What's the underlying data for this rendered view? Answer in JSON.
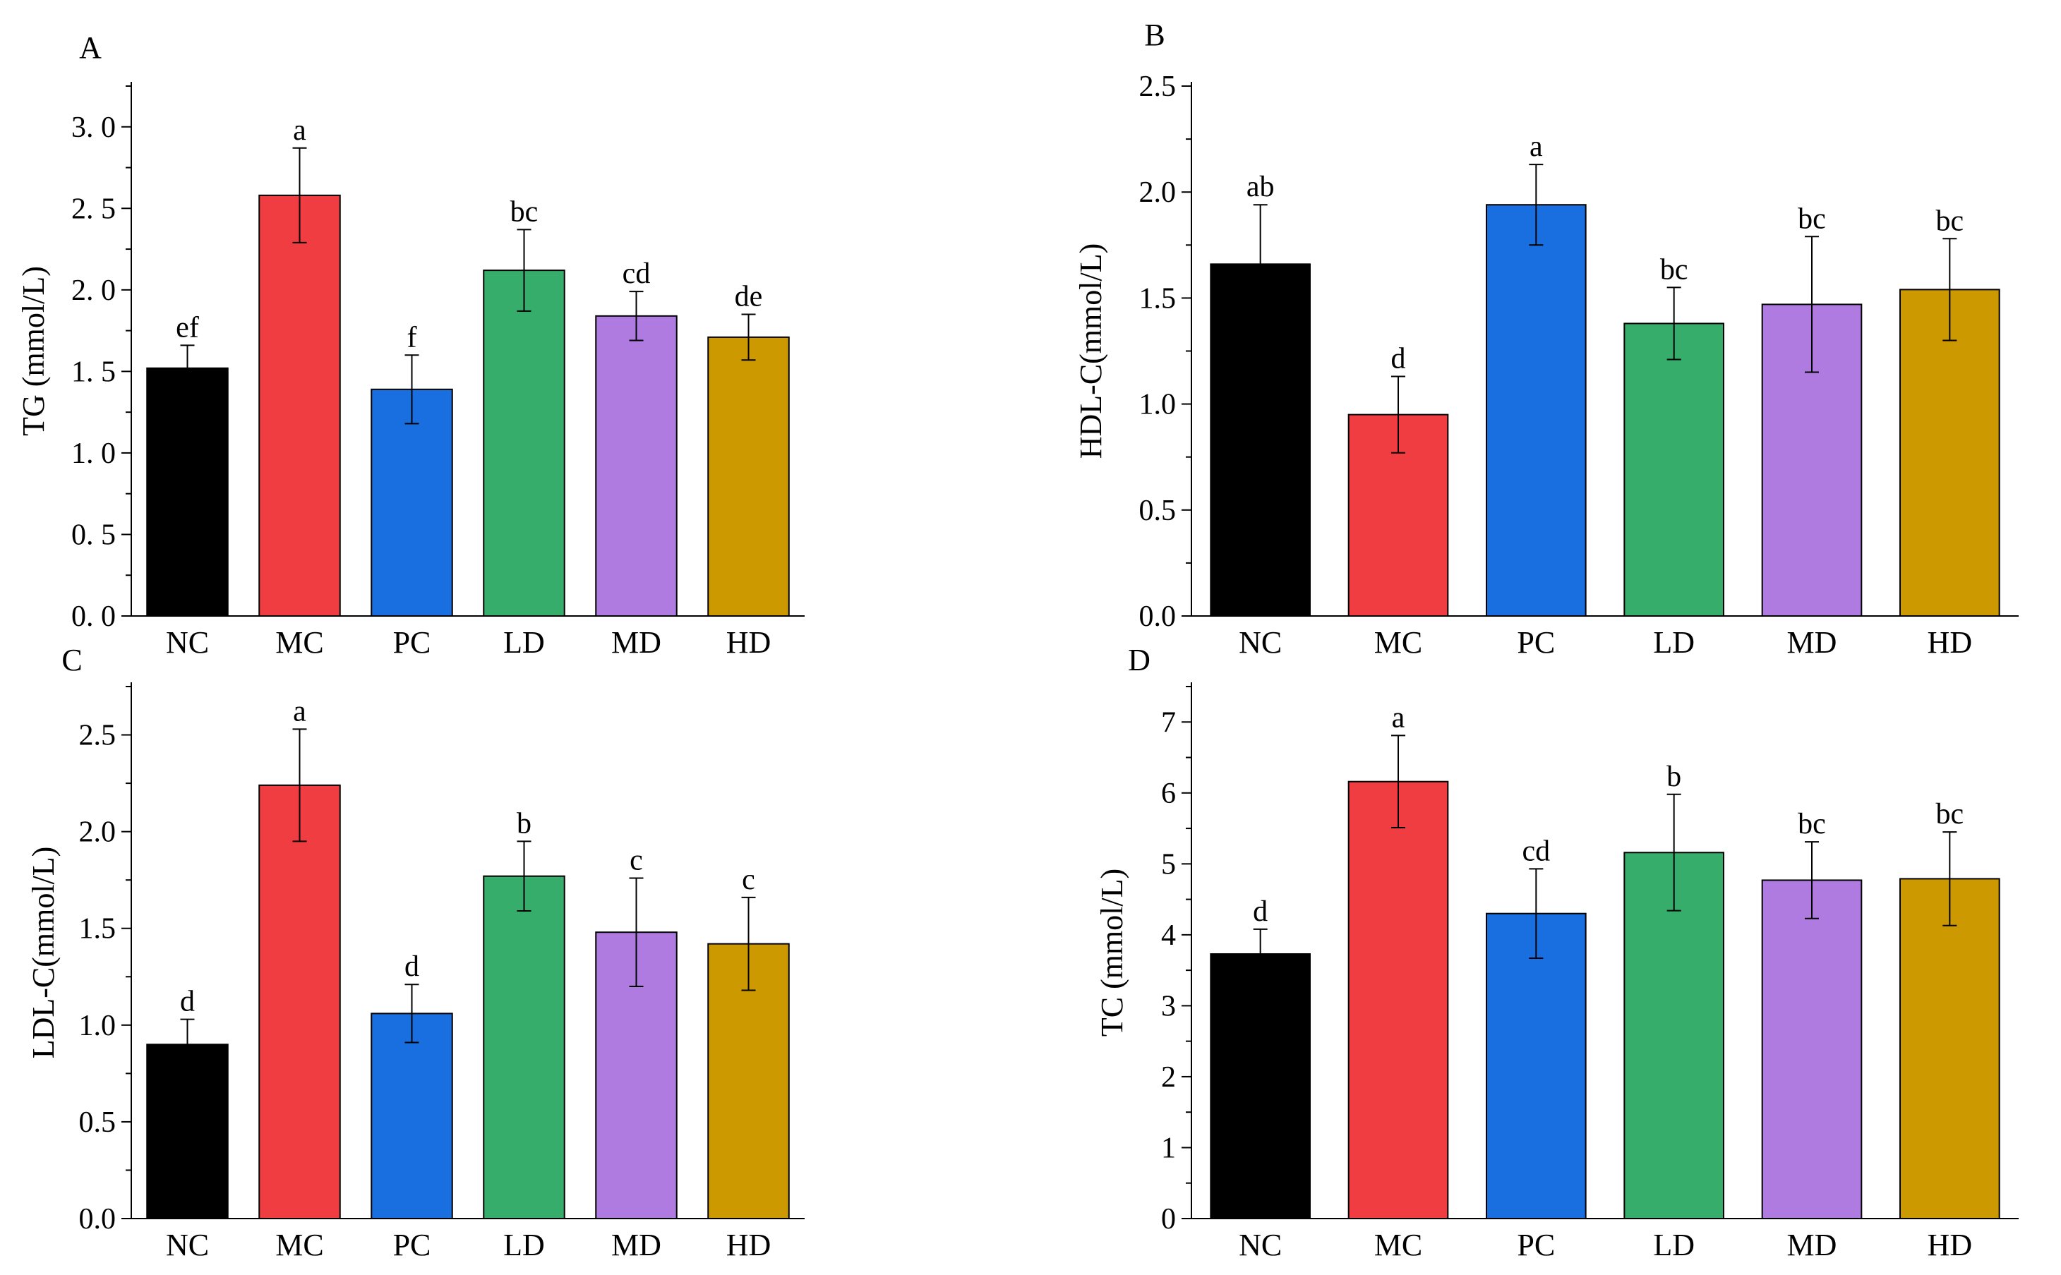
{
  "colors": {
    "NC": "#000000",
    "MC": "#ef3d42",
    "PC": "#1a6fe0",
    "LD": "#36ad6a",
    "MD": "#b07be0",
    "HD": "#cc9a00"
  },
  "chart_data": [
    {
      "panel": "A",
      "type": "bar",
      "ylabel": "TG (mmol/L)",
      "categories": [
        "NC",
        "MC",
        "PC",
        "LD",
        "MD",
        "HD"
      ],
      "values": [
        1.52,
        2.58,
        1.39,
        2.12,
        1.84,
        1.71
      ],
      "errors": [
        0.14,
        0.29,
        0.21,
        0.25,
        0.15,
        0.14
      ],
      "significance": [
        "ef",
        "a",
        "f",
        "bc",
        "cd",
        "de"
      ],
      "ylim": [
        0,
        3.25
      ],
      "yticks": [
        0,
        0.5,
        1.0,
        1.5,
        2.0,
        2.5,
        3.0
      ],
      "ytick_labels": [
        "0. 0",
        "0. 5",
        "1. 0",
        "1. 5",
        "2. 0",
        "2. 5",
        "3. 0"
      ]
    },
    {
      "panel": "B",
      "type": "bar",
      "ylabel": "HDL-C(mmol/L)",
      "categories": [
        "NC",
        "MC",
        "PC",
        "LD",
        "MD",
        "HD"
      ],
      "values": [
        1.66,
        0.95,
        1.94,
        1.38,
        1.47,
        1.54
      ],
      "errors": [
        0.28,
        0.18,
        0.19,
        0.17,
        0.32,
        0.24
      ],
      "significance": [
        "ab",
        "d",
        "a",
        "bc",
        "bc",
        "bc"
      ],
      "ylim": [
        0,
        2.5
      ],
      "yticks": [
        0,
        0.5,
        1.0,
        1.5,
        2.0,
        2.5
      ],
      "ytick_labels": [
        "0.0",
        "0.5",
        "1.0",
        "1.5",
        "2.0",
        "2.5"
      ]
    },
    {
      "panel": "C",
      "type": "bar",
      "ylabel": "LDL-C(mmol/L)",
      "categories": [
        "NC",
        "MC",
        "PC",
        "LD",
        "MD",
        "HD"
      ],
      "values": [
        0.9,
        2.24,
        1.06,
        1.77,
        1.48,
        1.42
      ],
      "errors": [
        0.13,
        0.29,
        0.15,
        0.18,
        0.28,
        0.24
      ],
      "significance": [
        "d",
        "a",
        "d",
        "b",
        "c",
        "c"
      ],
      "ylim": [
        0,
        2.75
      ],
      "yticks": [
        0,
        0.5,
        1.0,
        1.5,
        2.0,
        2.5
      ],
      "ytick_labels": [
        "0.0",
        "0.5",
        "1.0",
        "1.5",
        "2.0",
        "2.5"
      ]
    },
    {
      "panel": "D",
      "type": "bar",
      "ylabel": "TC (mmol/L)",
      "categories": [
        "NC",
        "MC",
        "PC",
        "LD",
        "MD",
        "HD"
      ],
      "values": [
        3.73,
        6.16,
        4.3,
        5.16,
        4.77,
        4.79
      ],
      "errors": [
        0.35,
        0.65,
        0.63,
        0.82,
        0.54,
        0.66
      ],
      "significance": [
        "d",
        "a",
        "cd",
        "b",
        "bc",
        "bc"
      ],
      "ylim": [
        0,
        7.5
      ],
      "yticks": [
        0,
        1,
        2,
        3,
        4,
        5,
        6,
        7
      ],
      "ytick_labels": [
        "0",
        "1",
        "2",
        "3",
        "4",
        "5",
        "6",
        "7"
      ]
    }
  ]
}
